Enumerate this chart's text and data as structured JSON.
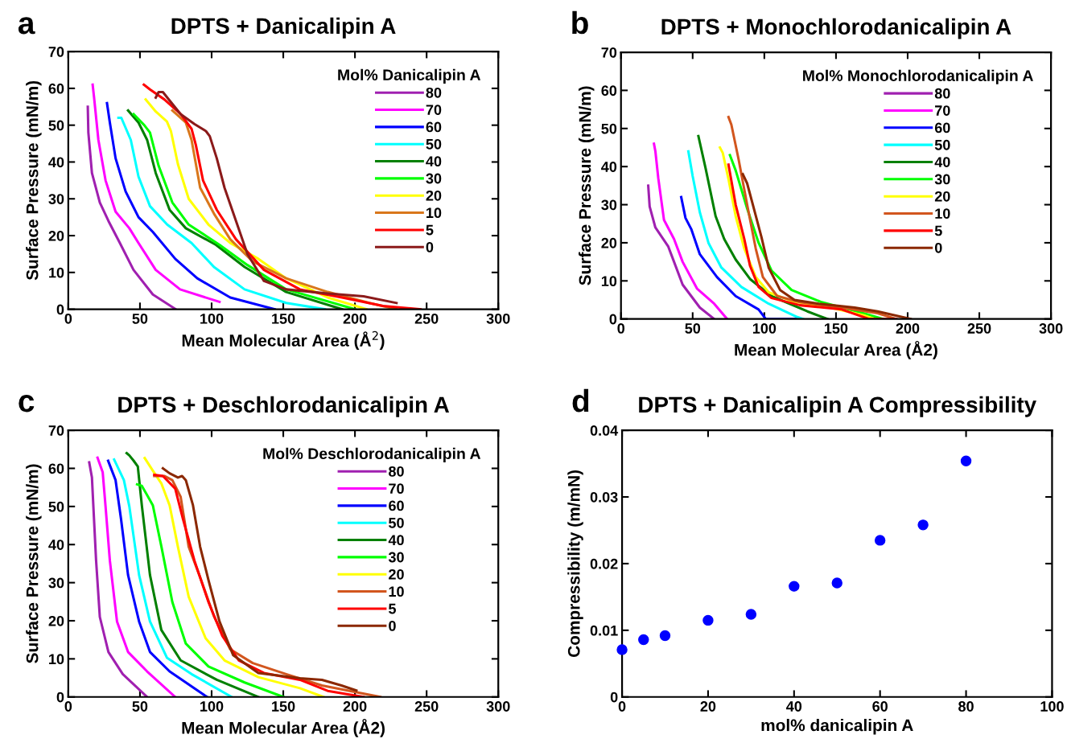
{
  "chart_data": [
    {
      "type": "line",
      "title": "DPTS + Danicalipin A",
      "annotations": [
        "a"
      ],
      "xlabel": "Mean Molecular Area (Å$^{2}$)",
      "ylabel": "Surface Pressure (mN/m)",
      "legend_title": "Mol% Danicalipin A",
      "legend": "top right",
      "grid": false,
      "xlim": [
        0,
        300
      ],
      "xticks": [
        0,
        50,
        100,
        150,
        200,
        250,
        300
      ],
      "ylim": [
        0,
        70
      ],
      "yticks": [
        0,
        10,
        20,
        30,
        40,
        50,
        60,
        70
      ],
      "series": [
        {
          "name": "80",
          "color": "#a020b0",
          "x": [
            13.6,
            14,
            16.5,
            22,
            28,
            36,
            45.5,
            59,
            75
          ],
          "values": [
            55,
            48,
            37,
            29,
            24,
            18,
            10.7,
            4,
            0
          ]
        },
        {
          "name": "70",
          "color": "#ff00ff",
          "x": [
            17,
            18,
            21,
            26,
            33,
            42.6,
            49,
            61,
            78,
            105.5
          ],
          "values": [
            61,
            57.5,
            46,
            35,
            26.5,
            22,
            18,
            10.7,
            5.4,
            2
          ]
        },
        {
          "name": "60",
          "color": "#0000ff",
          "x": [
            27,
            29,
            33,
            40,
            49,
            59,
            74.6,
            90,
            113,
            144
          ],
          "values": [
            56,
            50.7,
            41,
            32,
            25,
            21,
            13.7,
            8.4,
            3.2,
            0
          ]
        },
        {
          "name": "50",
          "color": "#00ffff",
          "x": [
            35,
            37,
            43.6,
            49,
            57,
            69,
            86,
            101.6,
            123,
            152,
            179
          ],
          "values": [
            52,
            52,
            46,
            36,
            28,
            23,
            18,
            11.5,
            5.4,
            1.7,
            0
          ]
        },
        {
          "name": "40",
          "color": "#008000",
          "x": [
            41.7,
            49,
            55,
            61,
            70.7,
            82,
            103,
            123,
            152,
            191
          ],
          "values": [
            54,
            50.7,
            46,
            37,
            27,
            22,
            17.5,
            11.5,
            4.7,
            0
          ]
        },
        {
          "name": "30",
          "color": "#00ff00",
          "x": [
            45.6,
            53,
            57,
            63,
            72.6,
            84,
            105.5,
            125,
            152,
            200
          ],
          "values": [
            53,
            50,
            48,
            39,
            29,
            23,
            17.5,
            12,
            5.4,
            0
          ]
        },
        {
          "name": "20",
          "color": "#ffff00",
          "x": [
            54,
            61,
            68.8,
            71.6,
            76.5,
            84,
            97.8,
            113,
            132.6,
            152,
            181,
            208
          ],
          "values": [
            57,
            53.7,
            51,
            48.4,
            39.4,
            30,
            23,
            18,
            13.7,
            8.4,
            3.2,
            0
          ]
        },
        {
          "name": "10",
          "color": "#d9771b",
          "x": [
            72.6,
            82,
            86,
            92,
            101.6,
            113,
            128.7,
            152,
            181,
            210,
            229
          ],
          "values": [
            54,
            50.7,
            46,
            33,
            26,
            19,
            13,
            8.4,
            4.7,
            1.7,
            0
          ]
        },
        {
          "name": "5",
          "color": "#ff0000",
          "x": [
            52.7,
            57,
            67,
            78.4,
            86,
            89,
            94,
            103.6,
            117,
            136.5,
            161.6,
            191,
            219.6,
            245.7
          ],
          "values": [
            61,
            59.7,
            57,
            53,
            49,
            44.6,
            35,
            27,
            19,
            10.7,
            5.4,
            3.2,
            0.9,
            0
          ]
        },
        {
          "name": "0",
          "color": "#8b1a1a",
          "x": [
            61,
            63,
            66,
            70.7,
            78.4,
            88,
            96,
            98.7,
            103.6,
            109,
            117,
            125,
            136.5,
            152,
            181,
            206,
            229
          ],
          "values": [
            57.5,
            59,
            59,
            56.7,
            53,
            50.3,
            48.4,
            47,
            41,
            33,
            24,
            15,
            7.7,
            5.4,
            4.3,
            3.5,
            1.7
          ]
        }
      ]
    },
    {
      "type": "line",
      "title": "DPTS + Monochlorodanicalipin A",
      "annotations": [
        "b"
      ],
      "xlabel": "Mean Molecular Area (Å2)",
      "ylabel": "Surface Pressure (mN/m)",
      "legend_title": "Mol% Monochlorodanicalipin A",
      "legend": "top right",
      "grid": false,
      "xlim": [
        0,
        300
      ],
      "xticks": [
        0,
        50,
        100,
        150,
        200,
        250,
        300
      ],
      "ylim": [
        0,
        70
      ],
      "yticks": [
        0,
        10,
        20,
        30,
        40,
        50,
        60,
        70
      ],
      "series": [
        {
          "name": "80",
          "color": "#a020b0",
          "x": [
            19,
            20,
            24,
            33,
            36,
            43,
            55,
            65
          ],
          "values": [
            35,
            29.5,
            24,
            19,
            16,
            9,
            3,
            0
          ]
        },
        {
          "name": "70",
          "color": "#ff00ff",
          "x": [
            23,
            24,
            26,
            30,
            37,
            43,
            53,
            65,
            74
          ],
          "values": [
            46,
            44,
            37,
            26,
            21,
            15,
            8,
            4,
            0
          ]
        },
        {
          "name": "60",
          "color": "#0000ff",
          "x": [
            42,
            45,
            49,
            55,
            67,
            80,
            96,
            101,
            126
          ],
          "values": [
            32,
            26.5,
            23.6,
            17,
            11,
            6,
            2.5,
            0,
            0
          ]
        },
        {
          "name": "50",
          "color": "#00ffff",
          "x": [
            47,
            50,
            55,
            61,
            70,
            84,
            103,
            123,
            127
          ],
          "values": [
            44,
            37.5,
            28,
            20,
            13.5,
            8.4,
            4,
            0.5,
            0
          ]
        },
        {
          "name": "40",
          "color": "#008000",
          "x": [
            54,
            59,
            66,
            72,
            80,
            90,
            105,
            130,
            144
          ],
          "values": [
            48,
            39.6,
            27,
            21,
            15.6,
            10.5,
            6,
            2,
            0
          ]
        },
        {
          "name": "30",
          "color": "#00ff00",
          "x": [
            76,
            80,
            88,
            96,
            105,
            119,
            140,
            169,
            183
          ],
          "values": [
            43,
            39,
            29,
            20,
            12.7,
            7.6,
            4.4,
            1.5,
            0
          ]
        },
        {
          "name": "20",
          "color": "#ffff00",
          "x": [
            69,
            71,
            75,
            80,
            86,
            94,
            103,
            119,
            146,
            169,
            177
          ],
          "values": [
            45,
            43.6,
            36.7,
            27,
            18.5,
            11,
            7,
            4.7,
            3,
            1,
            0
          ]
        },
        {
          "name": "10",
          "color": "#d2561e",
          "x": [
            75,
            77,
            82,
            88,
            94,
            99,
            109,
            125,
            154,
            179,
            192
          ],
          "values": [
            53,
            51,
            42,
            30,
            18.5,
            11,
            6,
            4.4,
            3,
            1.5,
            0
          ]
        },
        {
          "name": "5",
          "color": "#ff0000",
          "x": [
            75,
            80,
            86,
            90,
            96,
            105,
            125,
            154,
            173,
            192
          ],
          "values": [
            40.5,
            30,
            21,
            14,
            8.4,
            5.5,
            3.6,
            2.5,
            0,
            0
          ]
        },
        {
          "name": "0",
          "color": "#8b2800",
          "x": [
            85,
            88,
            92,
            98,
            103,
            111,
            121,
            138,
            163,
            179,
            202
          ],
          "values": [
            38,
            35.6,
            30,
            21.5,
            13.5,
            7.6,
            5,
            4,
            3,
            2,
            0
          ]
        }
      ]
    },
    {
      "type": "line",
      "title": "DPTS + Deschlorodanicalipin A",
      "annotations": [
        "c"
      ],
      "xlabel": "Mean Molecular Area (Å2)",
      "ylabel": "Surface Pressure (mN/m)",
      "legend_title": "Mol% Deschlorodanicalipin A",
      "legend": "top right",
      "grid": false,
      "xlim": [
        0,
        300
      ],
      "xticks": [
        0,
        50,
        100,
        150,
        200,
        250,
        300
      ],
      "ylim": [
        0,
        70
      ],
      "yticks": [
        0,
        10,
        20,
        30,
        40,
        50,
        60,
        70
      ],
      "series": [
        {
          "name": "80",
          "color": "#a020b0",
          "x": [
            14.6,
            16.5,
            17.5,
            19.4,
            22,
            28,
            38,
            55
          ],
          "values": [
            61.6,
            57.6,
            50,
            35.8,
            21,
            11.8,
            6,
            0
          ]
        },
        {
          "name": "70",
          "color": "#ff00ff",
          "x": [
            20.4,
            24,
            26,
            29,
            34,
            41.7,
            55,
            74.6
          ],
          "values": [
            62.8,
            59,
            50,
            35.8,
            19.8,
            11.8,
            6.7,
            0
          ]
        },
        {
          "name": "60",
          "color": "#0000ff",
          "x": [
            27.8,
            33,
            36.8,
            41.7,
            49.4,
            57,
            70.7,
            96.8
          ],
          "values": [
            62,
            56.9,
            46.7,
            32,
            19.8,
            11.8,
            6.7,
            0
          ]
        },
        {
          "name": "50",
          "color": "#00ffff",
          "x": [
            32,
            38.8,
            42.6,
            49.4,
            57,
            68.8,
            86,
            114
          ],
          "values": [
            62.3,
            56.9,
            50,
            32,
            19.8,
            10.3,
            6,
            0
          ]
        },
        {
          "name": "40",
          "color": "#008000",
          "x": [
            40.7,
            42.6,
            45.6,
            48.5,
            51.3,
            57,
            64.9,
            78.4,
            103.6,
            132.6
          ],
          "values": [
            64,
            63.4,
            62,
            60.5,
            50.3,
            32,
            17.6,
            9.6,
            4.5,
            0
          ]
        },
        {
          "name": "30",
          "color": "#00ff00",
          "x": [
            48,
            51.3,
            55,
            59,
            65,
            72.6,
            82,
            97.8,
            123,
            150
          ],
          "values": [
            55.8,
            55.4,
            53,
            50.3,
            39.4,
            24.9,
            14,
            8,
            3.8,
            0
          ]
        },
        {
          "name": "20",
          "color": "#ffff00",
          "x": [
            53.3,
            59,
            65,
            70.7,
            76.5,
            84,
            95.8,
            109,
            132.6,
            161.6,
            178
          ],
          "values": [
            62.7,
            59.4,
            56,
            50.3,
            39.4,
            26.3,
            15.4,
            9.6,
            5.2,
            2.3,
            0
          ]
        },
        {
          "name": "10",
          "color": "#d2561e",
          "x": [
            60,
            67,
            72.6,
            78.4,
            84,
            92,
            101.6,
            113,
            128.7,
            152,
            177,
            217.7
          ],
          "values": [
            58,
            58,
            56.9,
            52.5,
            39.4,
            31.4,
            21.2,
            12.5,
            8.9,
            6,
            3,
            0
          ]
        },
        {
          "name": "5",
          "color": "#ff0000",
          "x": [
            60,
            66,
            74.6,
            80,
            88,
            97.8,
            107.5,
            119,
            136.5,
            161.6,
            181,
            206
          ],
          "values": [
            58.3,
            58,
            54.7,
            46.7,
            35.8,
            24.9,
            16,
            9.6,
            6.3,
            4.5,
            1.6,
            0
          ]
        },
        {
          "name": "0",
          "color": "#8b2800",
          "x": [
            66,
            70.7,
            76.5,
            79.4,
            82,
            87,
            92,
            97.8,
            105.5,
            115,
            132.6,
            161.6,
            177,
            190.6,
            201
          ],
          "values": [
            60,
            58.7,
            57.6,
            58,
            56.9,
            50.3,
            39.4,
            30.7,
            19.8,
            11,
            6.3,
            4.9,
            4.5,
            3,
            1.7
          ]
        }
      ]
    },
    {
      "type": "scatter",
      "title": "DPTS + Danicalipin A Compressibility",
      "annotations": [
        "d"
      ],
      "xlabel": "mol% danicalipin A",
      "ylabel": "Compressibility (m/mN)",
      "marker": "circle",
      "grid": false,
      "xlim": [
        0,
        100
      ],
      "xticks": [
        0,
        20,
        40,
        60,
        80,
        100
      ],
      "ylim": [
        0,
        0.04
      ],
      "yticks": [
        0,
        0.01,
        0.02,
        0.03,
        0.04
      ],
      "series": [
        {
          "color": "#0000ff",
          "x": [
            0,
            5,
            10,
            20,
            30,
            40,
            50,
            60,
            70,
            80
          ],
          "values": [
            0.0071,
            0.0086,
            0.0092,
            0.0115,
            0.0124,
            0.0166,
            0.0171,
            0.0235,
            0.0258,
            0.0354
          ]
        }
      ]
    }
  ]
}
